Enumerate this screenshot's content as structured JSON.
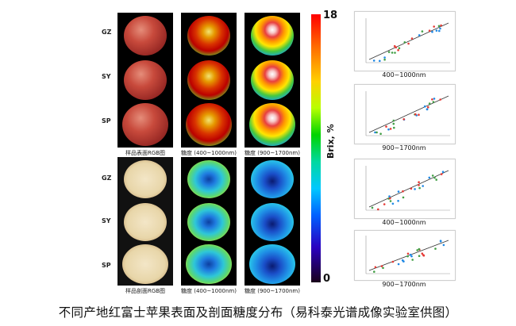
{
  "row_labels": [
    "GZ",
    "SY",
    "SP"
  ],
  "top_panel_captions": [
    "样品表面RGB图",
    "糖度 (400~1000nm)",
    "糖度 (900~1700nm)"
  ],
  "bottom_panel_captions": [
    "样品剖面RGB图",
    "糖度 (400~1000nm)",
    "糖度 (900~1700nm)"
  ],
  "colorbar": {
    "max_label": "18",
    "min_label": "0",
    "title": "Brix, %"
  },
  "chart_captions": [
    "400~1000nm",
    "900~1700nm",
    "400~1000nm",
    "900~1700nm"
  ],
  "main_caption": "不同产地红富士苹果表面及剖面糖度分布（易科泰光谱成像实验室供图）"
}
